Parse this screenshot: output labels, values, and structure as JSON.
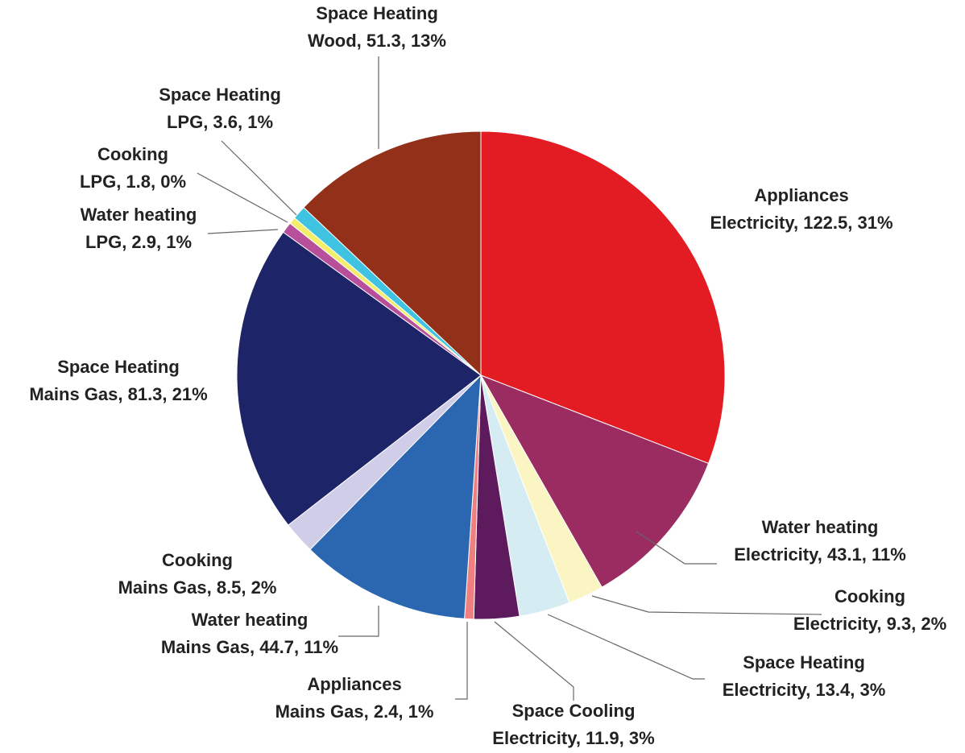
{
  "chart_data": {
    "type": "pie",
    "title": "",
    "slices": [
      {
        "category": "Appliances",
        "fuel": "Electricity",
        "value": 122.5,
        "percent": "31%",
        "color": "#e31b23"
      },
      {
        "category": "Water heating",
        "fuel": "Electricity",
        "value": 43.1,
        "percent": "11%",
        "color": "#9b2c61"
      },
      {
        "category": "Cooking",
        "fuel": "Electricity",
        "value": 9.3,
        "percent": "2%",
        "color": "#fbf5c4"
      },
      {
        "category": "Space Heating",
        "fuel": "Electricity",
        "value": 13.4,
        "percent": "3%",
        "color": "#d6ecf3"
      },
      {
        "category": "Space Cooling",
        "fuel": "Electricity",
        "value": 11.9,
        "percent": "3%",
        "color": "#5d1a5c"
      },
      {
        "category": "Appliances",
        "fuel": "Mains Gas",
        "value": 2.4,
        "percent": "1%",
        "color": "#f08080"
      },
      {
        "category": "Water heating",
        "fuel": "Mains Gas",
        "value": 44.7,
        "percent": "11%",
        "color": "#2b67b0"
      },
      {
        "category": "Cooking",
        "fuel": "Mains Gas",
        "value": 8.5,
        "percent": "2%",
        "color": "#cfcde8"
      },
      {
        "category": "Space Heating",
        "fuel": "Mains Gas",
        "value": 81.3,
        "percent": "21%",
        "color": "#1e2468"
      },
      {
        "category": "Water heating",
        "fuel": "LPG",
        "value": 2.9,
        "percent": "1%",
        "color": "#b84f9a"
      },
      {
        "category": "Cooking",
        "fuel": "LPG",
        "value": 1.8,
        "percent": "0%",
        "color": "#f3ee6a"
      },
      {
        "category": "Space Heating",
        "fuel": "LPG",
        "value": 3.6,
        "percent": "1%",
        "color": "#3fc3e0"
      },
      {
        "category": "Space Heating",
        "fuel": "Wood",
        "value": 51.3,
        "percent": "13%",
        "color": "#93301a"
      }
    ],
    "start_angle": "12 o'clock",
    "direction": "clockwise",
    "legend": "none"
  }
}
